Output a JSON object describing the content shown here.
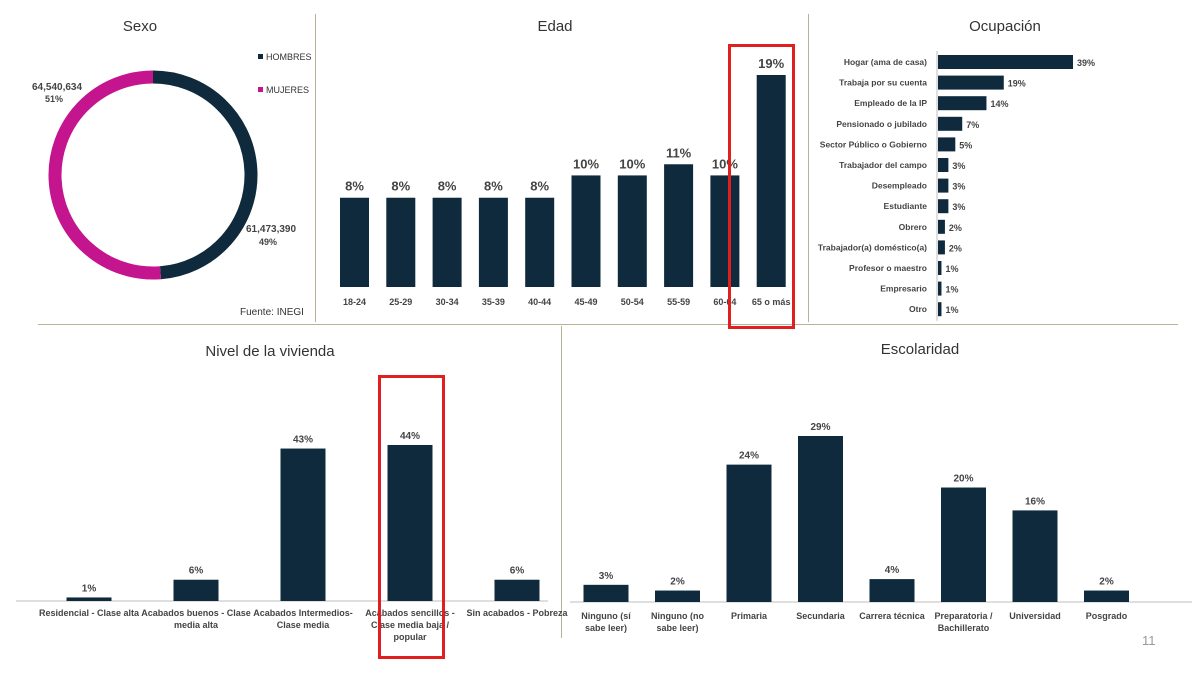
{
  "colors": {
    "navy": "#0e2a3c",
    "magenta": "#c4148e",
    "highlight": "#e02020"
  },
  "page_number": "11",
  "source": "Fuente: INEGI",
  "chart_data": [
    {
      "id": "sexo",
      "type": "pie",
      "title": "Sexo",
      "legend": [
        "HOMBRES",
        "MUJERES"
      ],
      "slices": [
        {
          "name": "HOMBRES",
          "value": 61473390,
          "value_label": "61,473,390",
          "pct_label": "49%",
          "color": "#0e2a3c"
        },
        {
          "name": "MUJERES",
          "value": 64540634,
          "value_label": "64,540,634",
          "pct_label": "51%",
          "color": "#c4148e"
        }
      ]
    },
    {
      "id": "edad",
      "type": "bar",
      "title": "Edad",
      "categories": [
        "18-24",
        "25-29",
        "30-34",
        "35-39",
        "40-44",
        "45-49",
        "50-54",
        "55-59",
        "60-64",
        "65 o más"
      ],
      "values": [
        8,
        8,
        8,
        8,
        8,
        10,
        10,
        11,
        10,
        19
      ],
      "labels": [
        "8%",
        "8%",
        "8%",
        "8%",
        "8%",
        "10%",
        "10%",
        "11%",
        "10%",
        "19%"
      ],
      "ylim": [
        0,
        20
      ],
      "highlight": "65 o más"
    },
    {
      "id": "ocupacion",
      "type": "bar",
      "orientation": "horizontal",
      "title": "Ocupación",
      "categories": [
        "Hogar (ama de casa)",
        "Trabaja por su cuenta",
        "Empleado de la IP",
        "Pensionado o jubilado",
        "Sector Público o Gobierno",
        "Trabajador del campo",
        "Desempleado",
        "Estudiante",
        "Obrero",
        "Trabajador(a) doméstico(a)",
        "Profesor o maestro",
        "Empresario",
        "Otro"
      ],
      "values": [
        39,
        19,
        14,
        7,
        5,
        3,
        3,
        3,
        2,
        2,
        1,
        1,
        1
      ],
      "labels": [
        "39%",
        "19%",
        "14%",
        "7%",
        "5%",
        "3%",
        "3%",
        "3%",
        "2%",
        "2%",
        "1%",
        "1%",
        "1%"
      ],
      "xlim": [
        0,
        40
      ]
    },
    {
      "id": "vivienda",
      "type": "bar",
      "title": "Nivel de la vivienda",
      "categories": [
        [
          "Residencial - Clase alta"
        ],
        [
          "Acabados buenos - Clase",
          "media alta"
        ],
        [
          "Acabados Intermedios-",
          "Clase media"
        ],
        [
          "Acabados sencillos -",
          "Clase media baja /",
          "popular"
        ],
        [
          "Sin acabados - Pobreza"
        ]
      ],
      "values": [
        1,
        6,
        43,
        44,
        6
      ],
      "labels": [
        "1%",
        "6%",
        "43%",
        "44%",
        "6%"
      ],
      "ylim": [
        0,
        45
      ],
      "highlight": 3
    },
    {
      "id": "escolaridad",
      "type": "bar",
      "title": "Escolaridad",
      "categories": [
        [
          "Ninguno (sí",
          "sabe leer)"
        ],
        [
          "Ninguno (no",
          "sabe leer)"
        ],
        [
          "Primaria"
        ],
        [
          "Secundaria"
        ],
        [
          "Carrera técnica"
        ],
        [
          "Preparatoria /",
          "Bachillerato"
        ],
        [
          "Universidad"
        ],
        [
          "Posgrado"
        ]
      ],
      "values": [
        3,
        2,
        24,
        29,
        4,
        20,
        16,
        2
      ],
      "labels": [
        "3%",
        "2%",
        "24%",
        "29%",
        "4%",
        "20%",
        "16%",
        "2%"
      ],
      "ylim": [
        0,
        30
      ]
    }
  ]
}
